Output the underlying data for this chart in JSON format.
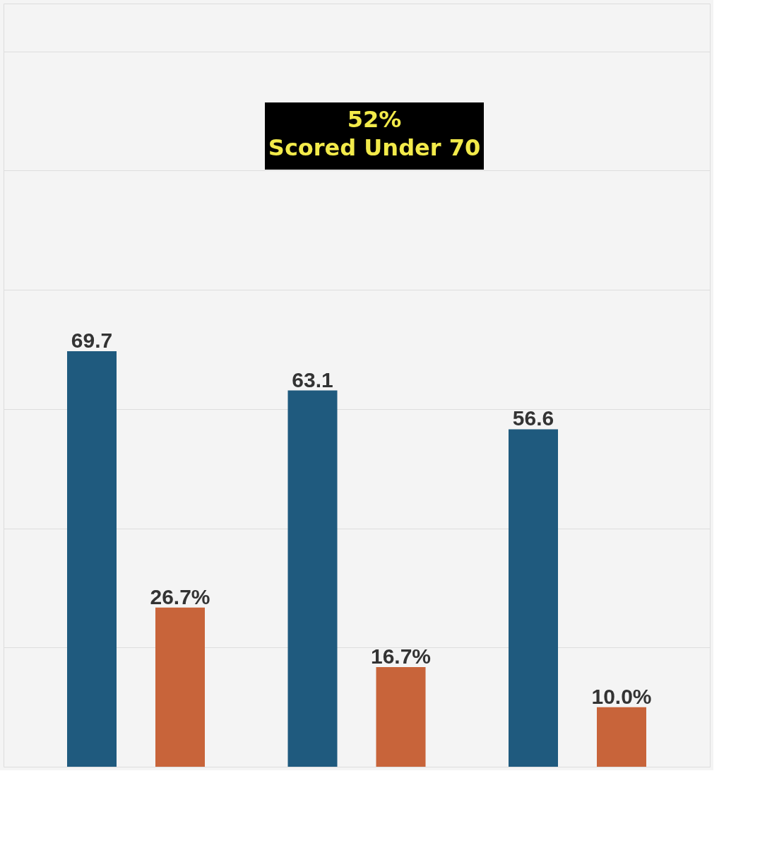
{
  "chart_data": {
    "type": "bar",
    "categories": [
      null,
      null,
      null
    ],
    "series": [
      {
        "color": "#1f5a7e",
        "values": [
          69.7,
          63.1,
          56.6
        ],
        "value_labels": [
          "69.7",
          "63.1",
          "56.6"
        ]
      },
      {
        "color": "#c8643a",
        "values": [
          26.7,
          16.7,
          10.0
        ],
        "value_labels": [
          "26.7%",
          "16.7%",
          "10.0%"
        ]
      }
    ],
    "ylim": [
      0,
      128
    ],
    "yticks": [
      {
        "value": 20,
        "label": null
      },
      {
        "value": 40,
        "label": null
      },
      {
        "value": 60,
        "label": null
      },
      {
        "value": 80,
        "label": null
      },
      {
        "value": 100,
        "label": null
      },
      {
        "value": 120,
        "label": null
      }
    ],
    "grid": "y",
    "tick_labels": false,
    "annotations": [
      "52%\nScored Under 70"
    ]
  }
}
